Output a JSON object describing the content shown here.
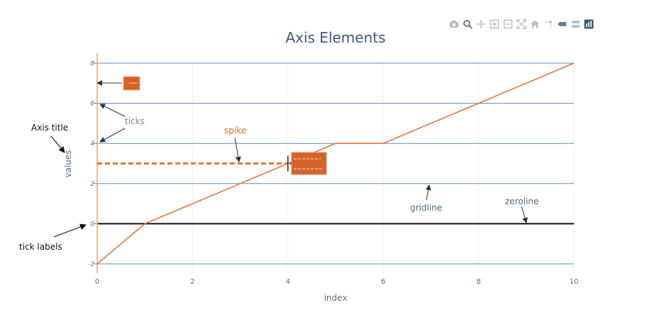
{
  "chart_data": {
    "type": "line",
    "title": "Axis Elements",
    "xlabel": "index",
    "ylabel": "values",
    "xlim": [
      0,
      10
    ],
    "ylim": [
      -2,
      8
    ],
    "x_ticks": [
      0,
      2,
      4,
      6,
      8,
      10
    ],
    "y_ticks": [
      -2,
      0,
      2,
      4,
      6,
      8
    ],
    "grid": true,
    "series": [
      {
        "x": [
          0,
          1,
          2,
          3,
          4,
          5,
          6,
          7,
          8,
          9,
          10
        ],
        "y": [
          -2,
          0,
          1,
          2,
          3,
          4,
          4,
          5,
          6,
          7,
          8
        ],
        "color": "#e8743b"
      }
    ],
    "spike": {
      "x": 4,
      "y": 3
    },
    "annotations": {
      "axis_title": "Axis title",
      "tick_labels": "tick labels",
      "ticks": "ticks",
      "spike": "spike",
      "gridline": "gridline",
      "zeroline": "zeroline"
    }
  },
  "colors": {
    "line": "#e8743b",
    "gridline": "#5b8bb7",
    "zeroline": "#111111",
    "title": "#3e5b78",
    "hover_box": "#d4622a"
  },
  "modebar": {
    "icons": [
      "camera-icon",
      "zoom-icon",
      "pan-icon",
      "zoom-in-icon",
      "zoom-out-icon",
      "autoscale-icon",
      "home-icon",
      "spike-toggle-icon",
      "hover-closest-icon",
      "hover-compare-icon",
      "plotly-logo-icon"
    ]
  }
}
